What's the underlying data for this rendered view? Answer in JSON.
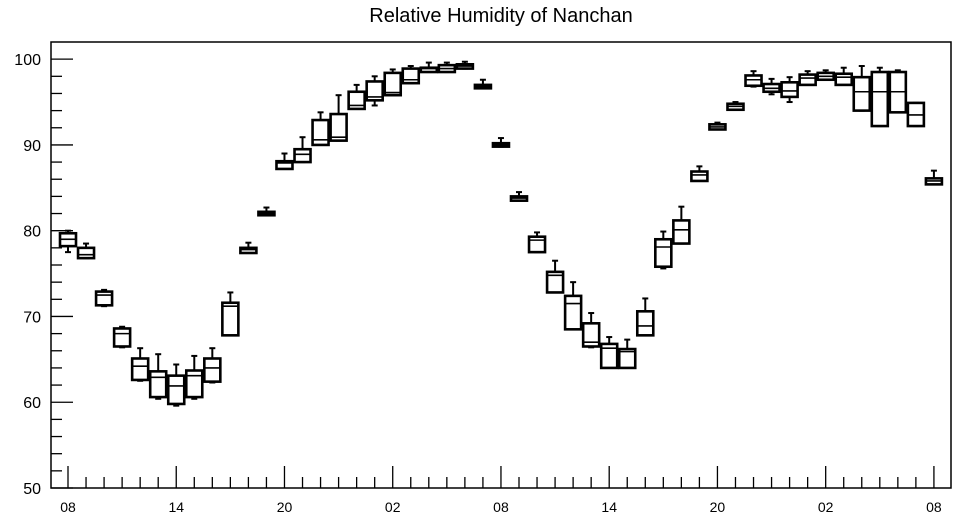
{
  "chart_data": {
    "type": "box",
    "title": "Relative Humidity of Nanchan",
    "xlabel": "",
    "ylabel": "",
    "ylim": [
      50,
      102
    ],
    "yticks": [
      50,
      60,
      70,
      80,
      90,
      100
    ],
    "x_tick_labels": [
      "08",
      "14",
      "20",
      "02",
      "08",
      "14",
      "20",
      "02",
      "08"
    ],
    "x_tick_hours": [
      0,
      6,
      12,
      18,
      24,
      30,
      36,
      42,
      48
    ],
    "grid": false,
    "boxes": [
      {
        "hour": 0,
        "min": 77.5,
        "q1": 78.2,
        "median": 79.0,
        "q3": 79.7,
        "max": 80.0
      },
      {
        "hour": 1,
        "min": 76.8,
        "q1": 76.8,
        "median": 77.2,
        "q3": 78.0,
        "max": 78.5
      },
      {
        "hour": 2,
        "min": 71.2,
        "q1": 71.3,
        "median": 72.5,
        "q3": 72.9,
        "max": 73.1
      },
      {
        "hour": 3,
        "min": 66.4,
        "q1": 66.5,
        "median": 68.0,
        "q3": 68.6,
        "max": 68.8
      },
      {
        "hour": 4,
        "min": 62.5,
        "q1": 62.6,
        "median": 64.2,
        "q3": 65.1,
        "max": 66.3
      },
      {
        "hour": 5,
        "min": 60.4,
        "q1": 60.6,
        "median": 62.9,
        "q3": 63.6,
        "max": 65.6
      },
      {
        "hour": 6,
        "min": 59.6,
        "q1": 59.8,
        "median": 61.9,
        "q3": 63.1,
        "max": 64.4
      },
      {
        "hour": 7,
        "min": 60.4,
        "q1": 60.6,
        "median": 63.1,
        "q3": 63.7,
        "max": 65.4
      },
      {
        "hour": 8,
        "min": 62.3,
        "q1": 62.4,
        "median": 64.0,
        "q3": 65.1,
        "max": 66.3
      },
      {
        "hour": 9,
        "min": 67.8,
        "q1": 67.8,
        "median": 71.2,
        "q3": 71.6,
        "max": 72.8
      },
      {
        "hour": 10,
        "min": 77.4,
        "q1": 77.4,
        "median": 77.8,
        "q3": 78.0,
        "max": 78.6
      },
      {
        "hour": 11,
        "min": 81.8,
        "q1": 81.8,
        "median": 82.0,
        "q3": 82.2,
        "max": 82.7
      },
      {
        "hour": 12,
        "min": 87.2,
        "q1": 87.2,
        "median": 87.9,
        "q3": 88.1,
        "max": 89.0
      },
      {
        "hour": 13,
        "min": 88.0,
        "q1": 88.0,
        "median": 88.9,
        "q3": 89.5,
        "max": 90.9
      },
      {
        "hour": 14,
        "min": 90.0,
        "q1": 90.0,
        "median": 90.6,
        "q3": 92.9,
        "max": 93.8
      },
      {
        "hour": 15,
        "min": 90.5,
        "q1": 90.5,
        "median": 90.9,
        "q3": 93.6,
        "max": 95.8
      },
      {
        "hour": 16,
        "min": 94.2,
        "q1": 94.2,
        "median": 94.6,
        "q3": 96.2,
        "max": 97.0
      },
      {
        "hour": 17,
        "min": 94.6,
        "q1": 95.2,
        "median": 95.6,
        "q3": 97.4,
        "max": 98.0
      },
      {
        "hour": 18,
        "min": 95.8,
        "q1": 95.8,
        "median": 96.1,
        "q3": 98.4,
        "max": 98.8
      },
      {
        "hour": 19,
        "min": 97.2,
        "q1": 97.2,
        "median": 97.6,
        "q3": 98.9,
        "max": 99.2
      },
      {
        "hour": 20,
        "min": 98.5,
        "q1": 98.5,
        "median": 98.9,
        "q3": 99.0,
        "max": 99.6
      },
      {
        "hour": 21,
        "min": 98.5,
        "q1": 98.5,
        "median": 98.9,
        "q3": 99.3,
        "max": 99.6
      },
      {
        "hour": 22,
        "min": 98.9,
        "q1": 98.9,
        "median": 99.2,
        "q3": 99.4,
        "max": 99.7
      },
      {
        "hour": 23,
        "min": 96.6,
        "q1": 96.6,
        "median": 96.8,
        "q3": 97.0,
        "max": 97.6
      },
      {
        "hour": 24,
        "min": 89.8,
        "q1": 89.8,
        "median": 90.0,
        "q3": 90.2,
        "max": 90.8
      },
      {
        "hour": 25,
        "min": 83.5,
        "q1": 83.5,
        "median": 83.8,
        "q3": 84.0,
        "max": 84.5
      },
      {
        "hour": 26,
        "min": 77.5,
        "q1": 77.5,
        "median": 78.9,
        "q3": 79.3,
        "max": 79.8
      },
      {
        "hour": 27,
        "min": 72.8,
        "q1": 72.8,
        "median": 74.8,
        "q3": 75.2,
        "max": 76.5
      },
      {
        "hour": 28,
        "min": 68.5,
        "q1": 68.5,
        "median": 71.5,
        "q3": 72.4,
        "max": 74.0
      },
      {
        "hour": 29,
        "min": 66.4,
        "q1": 66.5,
        "median": 67.0,
        "q3": 69.2,
        "max": 70.4
      },
      {
        "hour": 30,
        "min": 64.0,
        "q1": 64.0,
        "median": 66.3,
        "q3": 66.8,
        "max": 67.6
      },
      {
        "hour": 31,
        "min": 64.0,
        "q1": 64.0,
        "median": 65.9,
        "q3": 66.2,
        "max": 67.3
      },
      {
        "hour": 32,
        "min": 67.8,
        "q1": 67.8,
        "median": 68.9,
        "q3": 70.6,
        "max": 72.1
      },
      {
        "hour": 33,
        "min": 75.6,
        "q1": 75.8,
        "median": 78.1,
        "q3": 79.0,
        "max": 79.9
      },
      {
        "hour": 34,
        "min": 78.5,
        "q1": 78.5,
        "median": 80.1,
        "q3": 81.2,
        "max": 82.8
      },
      {
        "hour": 35,
        "min": 85.8,
        "q1": 85.8,
        "median": 86.5,
        "q3": 86.9,
        "max": 87.5
      },
      {
        "hour": 36,
        "min": 91.8,
        "q1": 91.8,
        "median": 92.1,
        "q3": 92.4,
        "max": 92.6
      },
      {
        "hour": 37,
        "min": 94.1,
        "q1": 94.1,
        "median": 94.5,
        "q3": 94.8,
        "max": 95.0
      },
      {
        "hour": 38,
        "min": 96.8,
        "q1": 96.9,
        "median": 97.6,
        "q3": 98.1,
        "max": 98.6
      },
      {
        "hour": 39,
        "min": 95.9,
        "q1": 96.2,
        "median": 96.6,
        "q3": 97.1,
        "max": 97.7
      },
      {
        "hour": 40,
        "min": 95.0,
        "q1": 95.6,
        "median": 96.3,
        "q3": 97.3,
        "max": 97.9
      },
      {
        "hour": 41,
        "min": 97.0,
        "q1": 97.0,
        "median": 97.8,
        "q3": 98.2,
        "max": 98.6
      },
      {
        "hour": 42,
        "min": 97.6,
        "q1": 97.6,
        "median": 98.0,
        "q3": 98.4,
        "max": 98.7
      },
      {
        "hour": 43,
        "min": 97.0,
        "q1": 97.0,
        "median": 97.9,
        "q3": 98.3,
        "max": 99.0
      },
      {
        "hour": 44,
        "min": 94.0,
        "q1": 94.0,
        "median": 96.2,
        "q3": 97.9,
        "max": 99.2
      },
      {
        "hour": 45,
        "min": 92.2,
        "q1": 92.2,
        "median": 96.2,
        "q3": 98.5,
        "max": 99.0
      },
      {
        "hour": 46,
        "min": 93.8,
        "q1": 93.8,
        "median": 96.2,
        "q3": 98.5,
        "max": 98.7
      },
      {
        "hour": 47,
        "min": 92.2,
        "q1": 92.2,
        "median": 93.5,
        "q3": 94.9,
        "max": 94.9
      },
      {
        "hour": 48,
        "min": 85.4,
        "q1": 85.4,
        "median": 85.8,
        "q3": 86.1,
        "max": 87.0
      }
    ]
  }
}
